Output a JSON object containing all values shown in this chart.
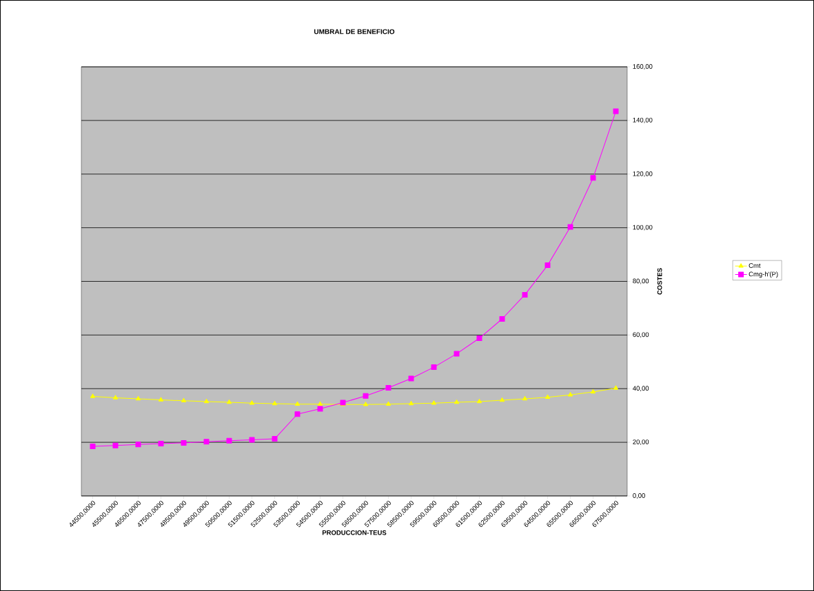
{
  "chart_data": {
    "type": "line",
    "title": "UMBRAL DE BENEFICIO",
    "xlabel": "PRODUCCION-TEUS",
    "ylabel": "COSTES",
    "categories": [
      "44500,0000",
      "45500,0000",
      "46500,0000",
      "47500,0000",
      "48500,0000",
      "49500,0000",
      "50500,0000",
      "51500,0000",
      "52500,0000",
      "53500,0000",
      "54500,0000",
      "55500,0000",
      "56500,0000",
      "57500,0000",
      "58500,0000",
      "59500,0000",
      "60500,0000",
      "61500,0000",
      "62500,0000",
      "63500,0000",
      "64500,0000",
      "65500,0000",
      "66500,0000",
      "67500,0000"
    ],
    "series": [
      {
        "name": "Cmt",
        "color": "#ffff00",
        "marker": "triangle",
        "values": [
          37.1,
          36.6,
          36.2,
          35.8,
          35.5,
          35.2,
          34.9,
          34.6,
          34.4,
          34.2,
          34.2,
          34.1,
          34.1,
          34.2,
          34.4,
          34.6,
          34.9,
          35.2,
          35.7,
          36.2,
          36.8,
          37.7,
          38.8,
          40.2
        ]
      },
      {
        "name": "Cmg-h'(P)",
        "color": "#ff00ff",
        "marker": "square",
        "values": [
          18.5,
          18.8,
          19.2,
          19.5,
          19.8,
          20.2,
          20.6,
          20.9,
          21.3,
          30.5,
          32.5,
          34.8,
          37.3,
          40.3,
          43.8,
          48.0,
          53.0,
          58.8,
          66.0,
          75.0,
          86.0,
          100.3,
          118.6,
          143.4
        ]
      }
    ],
    "ylim": [
      0,
      160
    ],
    "yticks": [
      {
        "value": 0,
        "label": "0,00"
      },
      {
        "value": 20,
        "label": "20,00"
      },
      {
        "value": 40,
        "label": "40,00"
      },
      {
        "value": 60,
        "label": "60,00"
      },
      {
        "value": 80,
        "label": "80,00"
      },
      {
        "value": 100,
        "label": "100,00"
      },
      {
        "value": 120,
        "label": "120,00"
      },
      {
        "value": 140,
        "label": "140,00"
      },
      {
        "value": 160,
        "label": "160,00"
      }
    ],
    "grid": "y",
    "legend": "right",
    "line_style": "solid"
  }
}
